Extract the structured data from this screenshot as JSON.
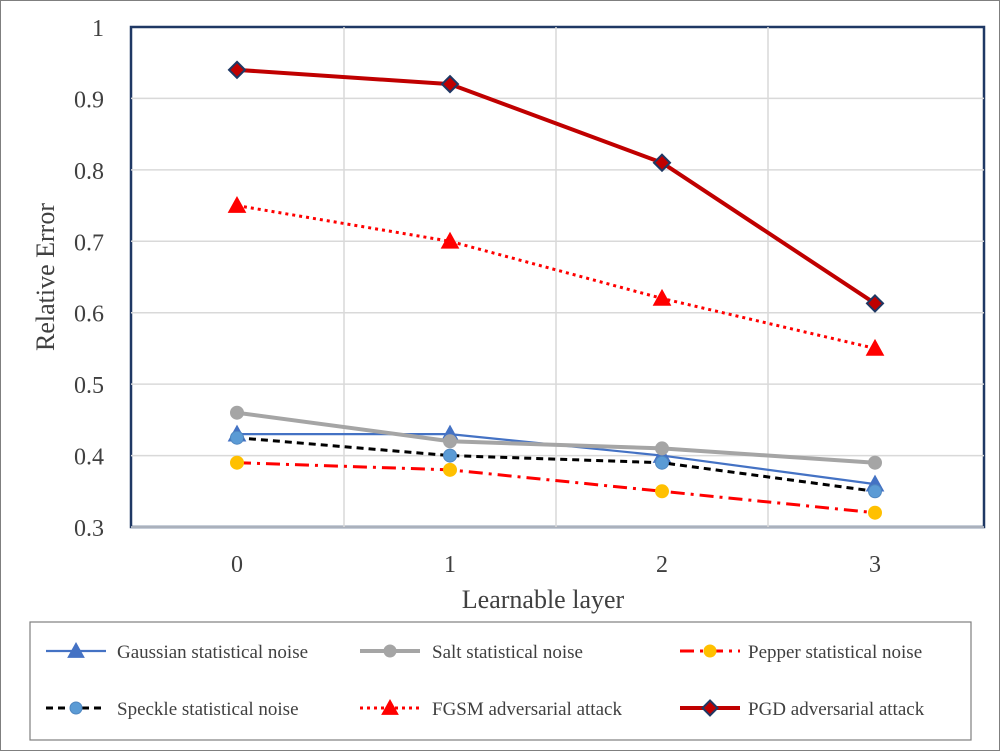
{
  "chart_data": {
    "type": "line",
    "title": "",
    "xlabel": "Learnable layer",
    "ylabel": "Relative Error",
    "x": [
      0,
      1,
      2,
      3
    ],
    "x_tick_labels": [
      "0",
      "1",
      "2",
      "3"
    ],
    "y_tick_labels": [
      "0.3",
      "0.4",
      "0.5",
      "0.6",
      "0.7",
      "0.8",
      "0.9",
      "1"
    ],
    "ylim": [
      0.3,
      1.0
    ],
    "grid": true,
    "legend_position": "bottom",
    "series": [
      {
        "name": "Gaussian statistical noise",
        "values": [
          0.43,
          0.43,
          0.4,
          0.36
        ],
        "color": "#4472c4",
        "style": "solid",
        "marker": "triangle",
        "marker_color": "#4472c4"
      },
      {
        "name": "Salt statistical noise",
        "values": [
          0.46,
          0.42,
          0.41,
          0.39
        ],
        "color": "#a5a5a5",
        "style": "solid-thick",
        "marker": "circle",
        "marker_color": "#a5a5a5"
      },
      {
        "name": "Pepper statistical noise",
        "values": [
          0.39,
          0.38,
          0.35,
          0.32
        ],
        "color": "#ff0000",
        "style": "dashdot",
        "marker": "circle",
        "marker_color": "#ffc000"
      },
      {
        "name": "Speckle statistical noise",
        "values": [
          0.425,
          0.4,
          0.39,
          0.35
        ],
        "color": "#000000",
        "style": "dashed",
        "marker": "circle",
        "marker_color": "#5b9bd5"
      },
      {
        "name": "FGSM adversarial attack",
        "values": [
          0.75,
          0.7,
          0.62,
          0.55
        ],
        "color": "#ff0000",
        "style": "dotted",
        "marker": "triangle",
        "marker_color": "#ff0000"
      },
      {
        "name": "PGD adversarial attack",
        "values": [
          0.94,
          0.92,
          0.81,
          0.613
        ],
        "color": "#c00000",
        "style": "solid-thick",
        "marker": "diamond",
        "marker_color": "#c00000"
      }
    ]
  }
}
